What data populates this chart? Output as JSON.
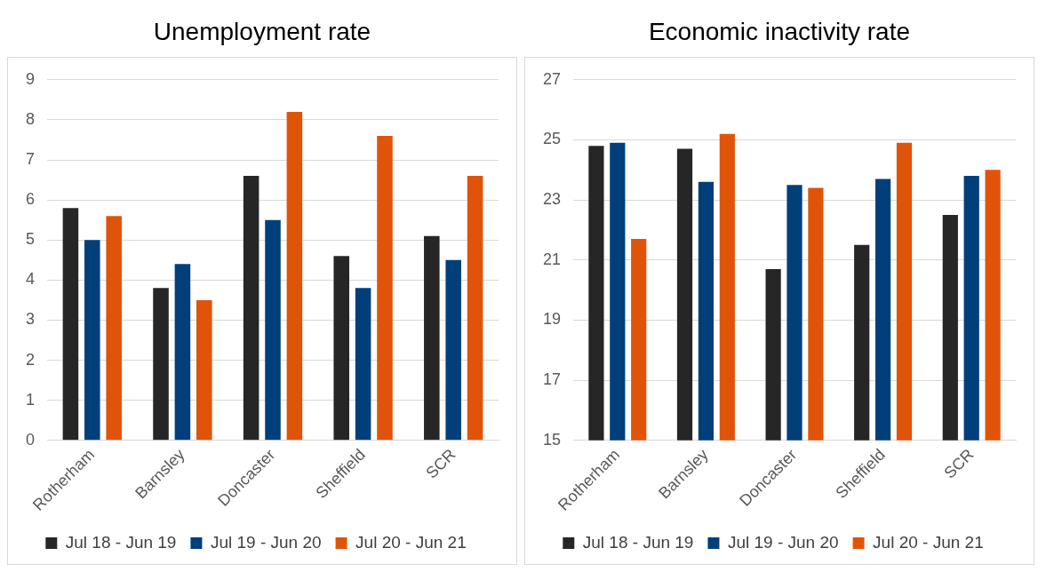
{
  "chart_data": [
    {
      "type": "bar",
      "title": "Unemployment rate",
      "categories": [
        "Rotherham",
        "Barnsley",
        "Doncaster",
        "Sheffield",
        "SCR"
      ],
      "series": [
        {
          "name": "Jul 18 - Jun 19",
          "color": "#262626",
          "values": [
            5.8,
            3.8,
            6.6,
            4.6,
            5.1
          ]
        },
        {
          "name": "Jul 19 - Jun 20",
          "color": "#003f7a",
          "values": [
            5.0,
            4.4,
            5.5,
            3.8,
            4.5
          ]
        },
        {
          "name": "Jul 20 - Jun 21",
          "color": "#e0540a",
          "values": [
            5.6,
            3.5,
            8.2,
            7.6,
            6.6
          ]
        }
      ],
      "ylim": [
        0,
        9
      ],
      "yticks": [
        0,
        1,
        2,
        3,
        4,
        5,
        6,
        7,
        8,
        9
      ],
      "grid": "y",
      "legend": "bottom"
    },
    {
      "type": "bar",
      "title": "Economic inactivity rate",
      "categories": [
        "Rotherham",
        "Barnsley",
        "Doncaster",
        "Sheffield",
        "SCR"
      ],
      "series": [
        {
          "name": "Jul 18 - Jun 19",
          "color": "#262626",
          "values": [
            24.8,
            24.7,
            20.7,
            21.5,
            22.5
          ]
        },
        {
          "name": "Jul 19 - Jun 20",
          "color": "#003f7a",
          "values": [
            24.9,
            23.6,
            23.5,
            23.7,
            23.8
          ]
        },
        {
          "name": "Jul 20 - Jun 21",
          "color": "#e0540a",
          "values": [
            21.7,
            25.2,
            23.4,
            24.9,
            24.0
          ]
        }
      ],
      "ylim": [
        15,
        27
      ],
      "yticks": [
        15,
        17,
        19,
        21,
        23,
        25,
        27
      ],
      "grid": "y",
      "legend": "bottom"
    }
  ]
}
